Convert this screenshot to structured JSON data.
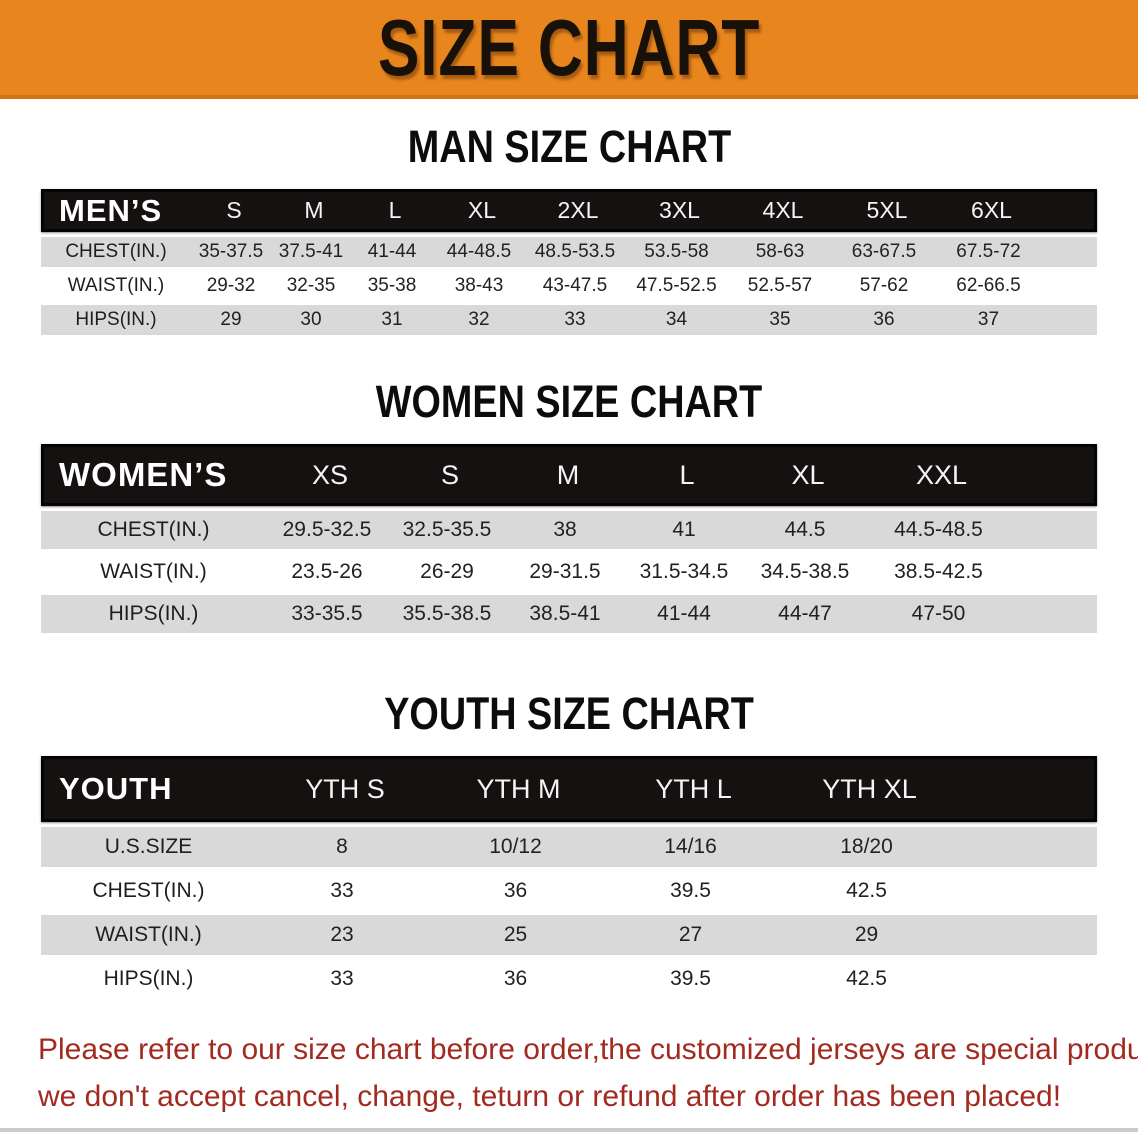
{
  "banner": {
    "title": "SIZE CHART"
  },
  "men_chart": {
    "title": "MAN SIZE CHART",
    "corner_label": "MEN’S",
    "sizes": [
      "S",
      "M",
      "L",
      "XL",
      "2XL",
      "3XL",
      "4XL",
      "5XL",
      "6XL"
    ],
    "rows": [
      {
        "label": "CHEST(IN.)",
        "values": [
          "35-37.5",
          "37.5-41",
          "41-44",
          "44-48.5",
          "48.5-53.5",
          "53.5-58",
          "58-63",
          "63-67.5",
          "67.5-72"
        ]
      },
      {
        "label": "WAIST(IN.)",
        "values": [
          "29-32",
          "32-35",
          "35-38",
          "38-43",
          "43-47.5",
          "47.5-52.5",
          "52.5-57",
          "57-62",
          "62-66.5"
        ]
      },
      {
        "label": "HIPS(IN.)",
        "values": [
          "29",
          "30",
          "31",
          "32",
          "33",
          "34",
          "35",
          "36",
          "37"
        ]
      }
    ]
  },
  "women_chart": {
    "title": "WOMEN SIZE CHART",
    "corner_label": "WOMEN’S",
    "sizes": [
      "XS",
      "S",
      "M",
      "L",
      "XL",
      "XXL"
    ],
    "rows": [
      {
        "label": "CHEST(IN.)",
        "values": [
          "29.5-32.5",
          "32.5-35.5",
          "38",
          "41",
          "44.5",
          "44.5-48.5"
        ]
      },
      {
        "label": "WAIST(IN.)",
        "values": [
          "23.5-26",
          "26-29",
          "29-31.5",
          "31.5-34.5",
          "34.5-38.5",
          "38.5-42.5"
        ]
      },
      {
        "label": "HIPS(IN.)",
        "values": [
          "33-35.5",
          "35.5-38.5",
          "38.5-41",
          "41-44",
          "44-47",
          "47-50"
        ]
      }
    ]
  },
  "youth_chart": {
    "title": "YOUTH SIZE CHART",
    "corner_label": "YOUTH",
    "sizes": [
      "YTH S",
      "YTH M",
      "YTH L",
      "YTH XL"
    ],
    "rows": [
      {
        "label": "U.S.SIZE",
        "values": [
          "8",
          "10/12",
          "14/16",
          "18/20"
        ]
      },
      {
        "label": "CHEST(IN.)",
        "values": [
          "33",
          "36",
          "39.5",
          "42.5"
        ]
      },
      {
        "label": "WAIST(IN.)",
        "values": [
          "23",
          "25",
          "27",
          "29"
        ]
      },
      {
        "label": "HIPS(IN.)",
        "values": [
          "33",
          "36",
          "39.5",
          "42.5"
        ]
      }
    ]
  },
  "disclaimer": {
    "line1": "Please refer to our size chart before order,the customized jerseys are special products,",
    "line2": "we don't accept cancel, change, teturn or refund after order has been placed!"
  },
  "colors": {
    "banner_bg": "#e8861d",
    "table_header_bg": "#161111",
    "row_alt_bg": "#d9d9d9",
    "disclaimer_text": "#a32a20"
  }
}
